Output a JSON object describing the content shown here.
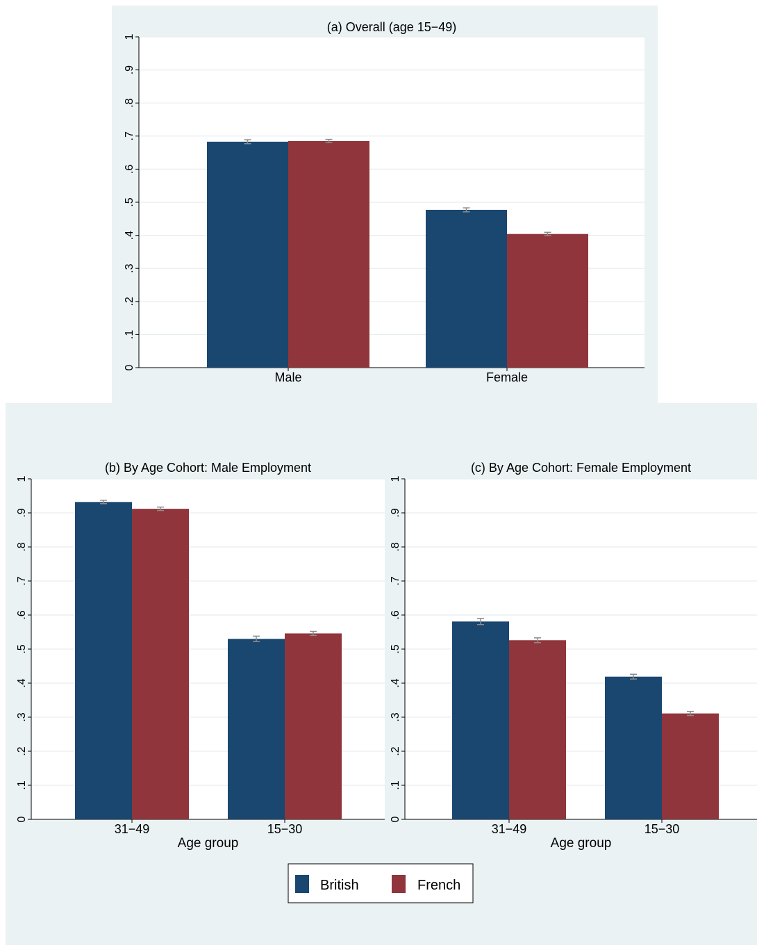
{
  "colors": {
    "background": "#eaf2f3",
    "plot_bg": "#ffffff",
    "grid": "#e6eeef",
    "British": "#1a476f",
    "French": "#90353b",
    "errorbar": "#8c8c8c"
  },
  "legend": {
    "items": [
      {
        "label": "British",
        "color": "#1a476f"
      },
      {
        "label": "French",
        "color": "#90353b"
      }
    ]
  },
  "chart_data": [
    {
      "type": "bar",
      "title": "(a) Overall (age 15−49)",
      "xlabel": "",
      "ylabel": "",
      "categories": [
        "Male",
        "Female"
      ],
      "ylim": [
        0,
        1
      ],
      "yticks": [
        "0",
        ".1",
        ".2",
        ".3",
        ".4",
        ".5",
        ".6",
        ".7",
        ".8",
        ".9",
        "1"
      ],
      "grid": true,
      "error_bars": true,
      "series": [
        {
          "name": "British",
          "values": [
            0.683,
            0.477
          ],
          "ci_low": [
            0.677,
            0.471
          ],
          "ci_high": [
            0.689,
            0.483
          ]
        },
        {
          "name": "French",
          "values": [
            0.685,
            0.404
          ],
          "ci_low": [
            0.68,
            0.399
          ],
          "ci_high": [
            0.69,
            0.409
          ]
        }
      ]
    },
    {
      "type": "bar",
      "title": "(b) By Age Cohort: Male Employment",
      "xlabel": "Age group",
      "ylabel": "",
      "categories": [
        "31−49",
        "15−30"
      ],
      "ylim": [
        0,
        1
      ],
      "yticks": [
        "0",
        ".1",
        ".2",
        ".3",
        ".4",
        ".5",
        ".6",
        ".7",
        ".8",
        ".9",
        "1"
      ],
      "grid": true,
      "error_bars": true,
      "series": [
        {
          "name": "British",
          "values": [
            0.932,
            0.53
          ],
          "ci_low": [
            0.927,
            0.522
          ],
          "ci_high": [
            0.937,
            0.538
          ]
        },
        {
          "name": "French",
          "values": [
            0.912,
            0.546
          ],
          "ci_low": [
            0.907,
            0.54
          ],
          "ci_high": [
            0.917,
            0.552
          ]
        }
      ]
    },
    {
      "type": "bar",
      "title": "(c) By Age Cohort: Female Employment",
      "xlabel": "Age group",
      "ylabel": "",
      "categories": [
        "31−49",
        "15−30"
      ],
      "ylim": [
        0,
        1
      ],
      "yticks": [
        "0",
        ".1",
        ".2",
        ".3",
        ".4",
        ".5",
        ".6",
        ".7",
        ".8",
        ".9",
        "1"
      ],
      "grid": true,
      "error_bars": true,
      "series": [
        {
          "name": "British",
          "values": [
            0.581,
            0.419
          ],
          "ci_low": [
            0.572,
            0.412
          ],
          "ci_high": [
            0.59,
            0.426
          ]
        },
        {
          "name": "French",
          "values": [
            0.526,
            0.311
          ],
          "ci_low": [
            0.519,
            0.305
          ],
          "ci_high": [
            0.533,
            0.317
          ]
        }
      ]
    }
  ]
}
